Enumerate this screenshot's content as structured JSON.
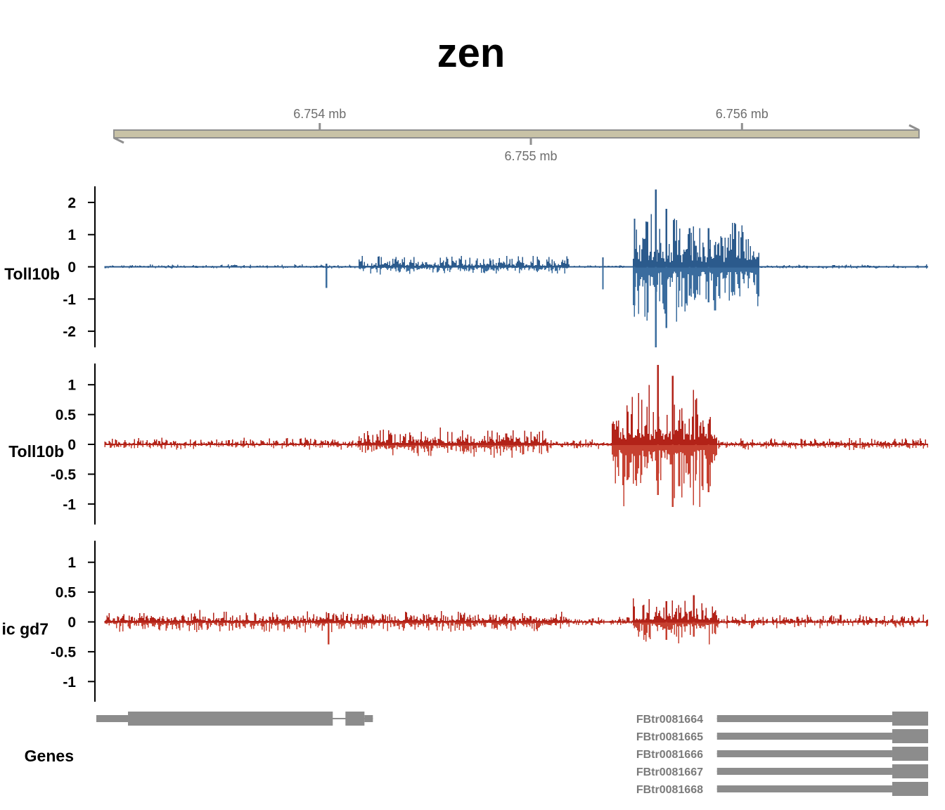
{
  "chart_data": {
    "type": "genome-browser",
    "title": "zen",
    "genome_axis": {
      "range_mb": [
        6.753,
        6.7569
      ],
      "ticks": [
        {
          "value": 6.754,
          "label": "6.754 mb",
          "side": "top"
        },
        {
          "value": 6.755,
          "label": "6.755 mb",
          "side": "bottom"
        },
        {
          "value": 6.756,
          "label": "6.756 mb",
          "side": "top"
        }
      ],
      "color": "#c8c2a6"
    },
    "tracks": [
      {
        "name": "Toll10b",
        "color": "#2b5a8c",
        "color_neg": "#3a6c9e",
        "ylim": [
          -2.5,
          2.5
        ],
        "yticks": [
          {
            "value": 2,
            "label": "2"
          },
          {
            "value": 1,
            "label": "1"
          },
          {
            "value": 0,
            "label": "0"
          },
          {
            "value": -1,
            "label": "-1"
          },
          {
            "value": -2,
            "label": "-2"
          }
        ],
        "segments": [
          {
            "from": 6.753,
            "to": 6.7542,
            "pos": 0.04,
            "neg": 0.03
          },
          {
            "from": 6.7542,
            "to": 6.7552,
            "pos": 0.2,
            "neg": 0.12
          },
          {
            "from": 6.7552,
            "to": 6.7555,
            "pos": 0.03,
            "neg": 0.02
          },
          {
            "from": 6.7555,
            "to": 6.7561,
            "pos": 0.9,
            "neg": 1.0
          },
          {
            "from": 6.7561,
            "to": 6.7569,
            "pos": 0.04,
            "neg": 0.03
          }
        ],
        "peaks": [
          {
            "x": 6.75561,
            "pos": 2.4,
            "neg": -2.5
          },
          {
            "x": 6.75566,
            "pos": 1.8,
            "neg": -1.9
          },
          {
            "x": 6.75557,
            "pos": 1.4,
            "neg": -0.6
          },
          {
            "x": 6.75551,
            "pos": 1.5,
            "neg": -1.2
          },
          {
            "x": 6.75577,
            "pos": 1.2,
            "neg": -0.9
          },
          {
            "x": 6.7558,
            "pos": 0.65,
            "neg": -0.6
          },
          {
            "x": 6.75586,
            "pos": 1.2,
            "neg": -1.1
          },
          {
            "x": 6.75536,
            "pos": 0.3,
            "neg": -0.7
          },
          {
            "x": 6.75405,
            "pos": 0.1,
            "neg": -0.65
          }
        ]
      },
      {
        "name": "Toll10b",
        "color": "#b22218",
        "color_neg": "#c64030",
        "ylim": [
          -1.35,
          1.35
        ],
        "yticks": [
          {
            "value": 1,
            "label": "1"
          },
          {
            "value": 0.5,
            "label": "0.5"
          },
          {
            "value": 0,
            "label": "0"
          },
          {
            "value": -0.5,
            "label": "-0.5"
          },
          {
            "value": -1,
            "label": "-1"
          }
        ],
        "segments": [
          {
            "from": 6.753,
            "to": 6.7542,
            "pos": 0.06,
            "neg": 0.05
          },
          {
            "from": 6.7542,
            "to": 6.7551,
            "pos": 0.14,
            "neg": 0.12
          },
          {
            "from": 6.7551,
            "to": 6.7554,
            "pos": 0.05,
            "neg": 0.04
          },
          {
            "from": 6.7554,
            "to": 6.7559,
            "pos": 0.5,
            "neg": 0.6
          },
          {
            "from": 6.7559,
            "to": 6.7569,
            "pos": 0.06,
            "neg": 0.05
          }
        ],
        "peaks": [
          {
            "x": 6.75562,
            "pos": 1.33,
            "neg": -0.85
          },
          {
            "x": 6.75569,
            "pos": 1.15,
            "neg": -1.05
          },
          {
            "x": 6.7558,
            "pos": 0.75,
            "neg": -0.5
          },
          {
            "x": 6.75586,
            "pos": 0.35,
            "neg": -0.8
          },
          {
            "x": 6.75572,
            "pos": 0.4,
            "neg": -0.7
          }
        ]
      },
      {
        "name": "ic gd7",
        "color": "#b22218",
        "color_neg": "#c64030",
        "ylim": [
          -1.35,
          1.35
        ],
        "yticks": [
          {
            "value": 1,
            "label": "1"
          },
          {
            "value": 0.5,
            "label": "0.5"
          },
          {
            "value": 0,
            "label": "0"
          },
          {
            "value": -0.5,
            "label": "-0.5"
          },
          {
            "value": -1,
            "label": "-1"
          }
        ],
        "segments": [
          {
            "from": 6.753,
            "to": 6.7552,
            "pos": 0.1,
            "neg": 0.09
          },
          {
            "from": 6.7552,
            "to": 6.7555,
            "pos": 0.05,
            "neg": 0.04
          },
          {
            "from": 6.7555,
            "to": 6.7559,
            "pos": 0.22,
            "neg": 0.2
          },
          {
            "from": 6.7559,
            "to": 6.7569,
            "pos": 0.07,
            "neg": 0.06
          }
        ],
        "peaks": [
          {
            "x": 6.75579,
            "pos": 0.45,
            "neg": -0.25
          },
          {
            "x": 6.75566,
            "pos": 0.35,
            "neg": -0.3
          },
          {
            "x": 6.75406,
            "pos": 0.15,
            "neg": -0.38
          }
        ]
      }
    ],
    "genes": {
      "label": "Genes",
      "color": "#8c8c8c",
      "transcripts": [
        {
          "name": "",
          "x1": 6.75296,
          "x2": 6.75427,
          "exons": [
            [
              6.75296,
              6.75311,
              "utr"
            ],
            [
              6.75311,
              6.75408,
              "cds"
            ],
            [
              6.75414,
              6.75423,
              "cds"
            ],
            [
              6.75423,
              6.75427,
              "utr"
            ]
          ]
        },
        {
          "name": "FBtr0081664",
          "x1": 6.7559,
          "x2": 6.7569,
          "exons": [
            [
              6.7559,
              6.75673,
              "utr"
            ],
            [
              6.75673,
              6.7569,
              "cds"
            ]
          ]
        },
        {
          "name": "FBtr0081665",
          "x1": 6.7559,
          "x2": 6.7569,
          "exons": [
            [
              6.7559,
              6.75673,
              "utr"
            ],
            [
              6.75673,
              6.7569,
              "cds"
            ]
          ]
        },
        {
          "name": "FBtr0081666",
          "x1": 6.7559,
          "x2": 6.7569,
          "exons": [
            [
              6.7559,
              6.75673,
              "utr"
            ],
            [
              6.75673,
              6.7569,
              "cds"
            ]
          ]
        },
        {
          "name": "FBtr0081667",
          "x1": 6.7559,
          "x2": 6.7569,
          "exons": [
            [
              6.7559,
              6.75673,
              "utr"
            ],
            [
              6.75673,
              6.7569,
              "cds"
            ]
          ]
        },
        {
          "name": "FBtr0081668",
          "x1": 6.7559,
          "x2": 6.7569,
          "exons": [
            [
              6.7559,
              6.75673,
              "utr"
            ],
            [
              6.75673,
              6.7569,
              "cds"
            ]
          ]
        }
      ]
    }
  }
}
